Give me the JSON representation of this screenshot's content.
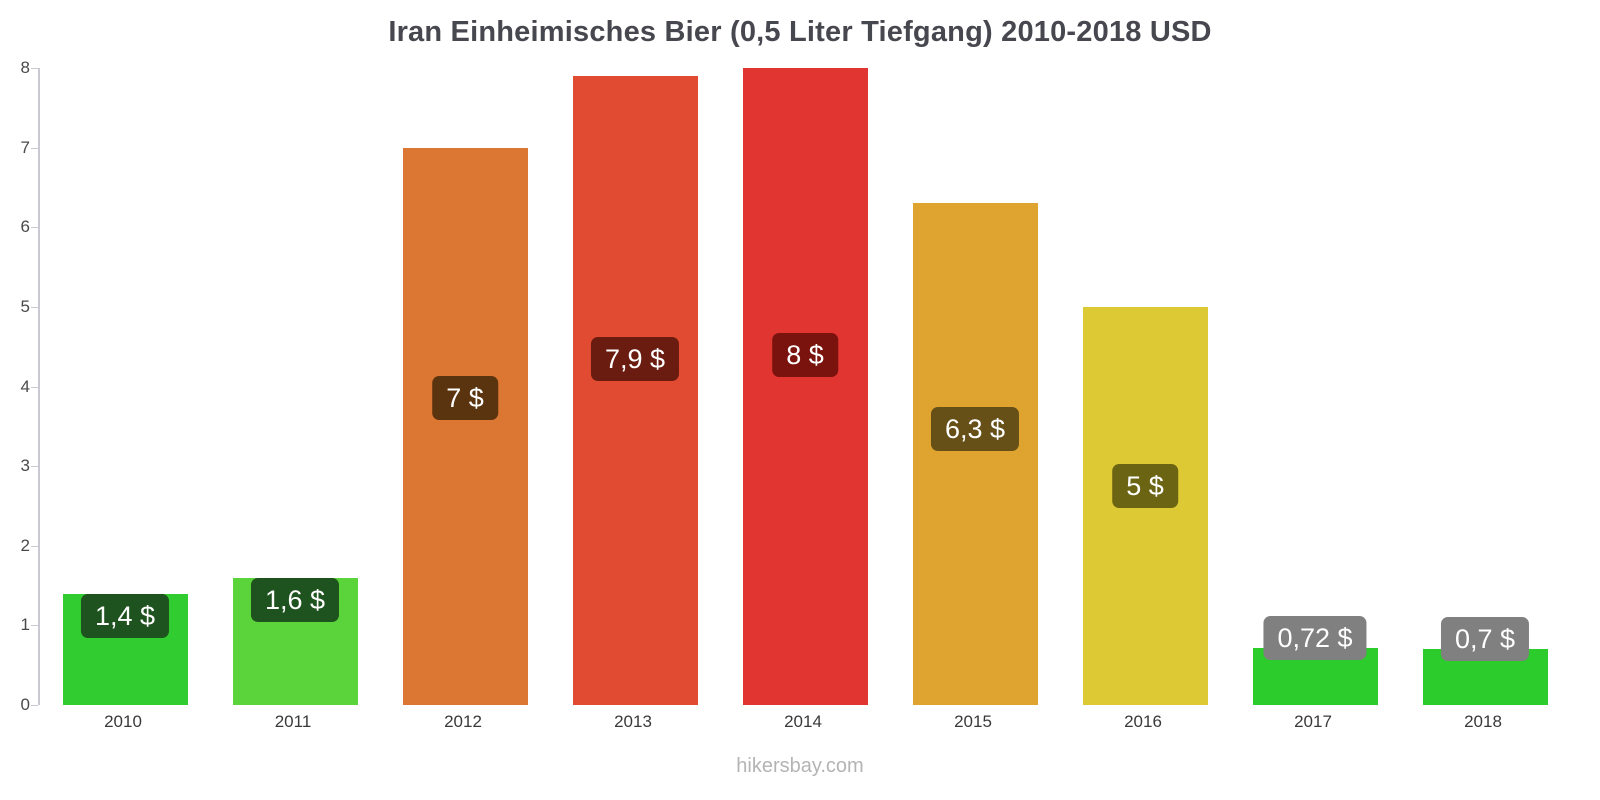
{
  "title": "Iran Einheimisches Bier (0,5 Liter Tiefgang) 2010-2018 USD",
  "footer": "hikersbay.com",
  "chart_data": {
    "type": "bar",
    "title": "Iran Einheimisches Bier (0,5 Liter Tiefgang) 2010-2018 USD",
    "categories": [
      "2010",
      "2011",
      "2012",
      "2013",
      "2014",
      "2015",
      "2016",
      "2017",
      "2018"
    ],
    "values": [
      1.4,
      1.6,
      7,
      7.9,
      8,
      6.3,
      5,
      0.72,
      0.7
    ],
    "bar_labels": [
      "1,4 $",
      "1,6 $",
      "7 $",
      "7,9 $",
      "8 $",
      "6,3 $",
      "5 $",
      "0,72 $",
      "0,7 $"
    ],
    "bar_colors": [
      "#30cc30",
      "#5bd43b",
      "#dc7633",
      "#e14b31",
      "#e03531",
      "#dfa430",
      "#ddc934",
      "#2bcc2b",
      "#2bcc2b"
    ],
    "label_bg_colors": [
      "#1e521e",
      "#1e521e",
      "#5a340f",
      "#6b1c11",
      "#7a120d",
      "#665017",
      "#6b6413",
      "#808080",
      "#808080"
    ],
    "xlabel": "",
    "ylabel": "",
    "ylim": [
      0,
      8
    ],
    "yticks": [
      0,
      1,
      2,
      3,
      4,
      5,
      6,
      7,
      8
    ],
    "grid": false,
    "legend": false,
    "currency": "USD"
  }
}
